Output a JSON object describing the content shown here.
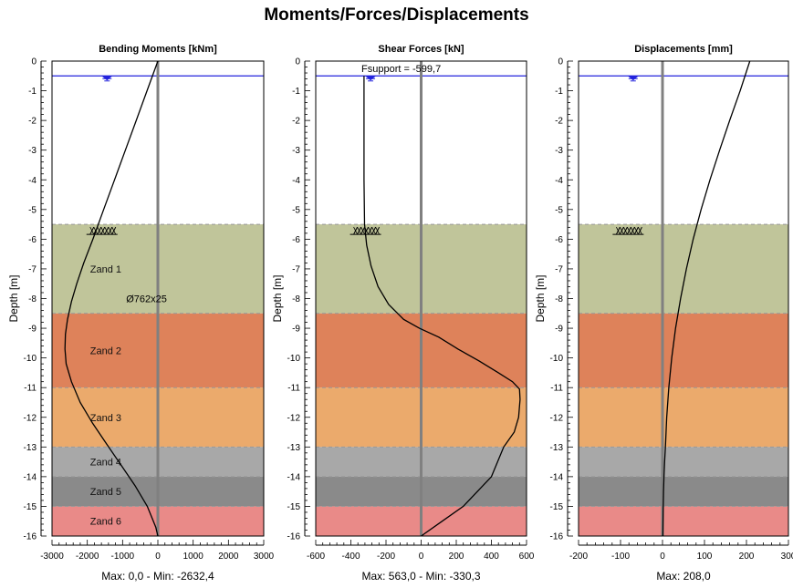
{
  "title": "Moments/Forces/Displacements",
  "colors": {
    "water": "#2222dd",
    "axis_line": "#808080",
    "curve": "#000000"
  },
  "layers": [
    {
      "name": "Zand 1",
      "top": -5.5,
      "bottom": -8.5,
      "color": "#c0c59a"
    },
    {
      "name": "Zand 2",
      "top": -8.5,
      "bottom": -11.0,
      "color": "#de825a"
    },
    {
      "name": "Zand 3",
      "top": -11.0,
      "bottom": -13.0,
      "color": "#ebaa6c"
    },
    {
      "name": "Zand 4",
      "top": -13.0,
      "bottom": -14.0,
      "color": "#a8a8a8"
    },
    {
      "name": "Zand 5",
      "top": -14.0,
      "bottom": -15.0,
      "color": "#8a8a8a"
    },
    {
      "name": "Zand 6",
      "top": -15.0,
      "bottom": -16.0,
      "color": "#e98a88"
    }
  ],
  "water_level": -0.5,
  "ground_level": -5.5,
  "chart_data": [
    {
      "type": "line",
      "title": "Bending Moments [kNm]",
      "ylabel": "Depth [m]",
      "xlim": [
        -3000,
        3000
      ],
      "ylim": [
        -16,
        0
      ],
      "xticks": [
        -3000,
        -2000,
        -1000,
        0,
        1000,
        2000,
        3000
      ],
      "yticks": [
        0,
        -1,
        -2,
        -3,
        -4,
        -5,
        -6,
        -7,
        -8,
        -9,
        -10,
        -11,
        -12,
        -13,
        -14,
        -15,
        -16
      ],
      "footer": "Max: 0,0 - Min: -2632,4",
      "annotation": "Ø762x25",
      "show_layer_names": true,
      "series": [
        {
          "x": [
            0,
            -307,
            -614,
            -921,
            -1228,
            -1535,
            -1842,
            -2100,
            -2300,
            -2450,
            -2560,
            -2620,
            -2632,
            -2600,
            -2450,
            -2200,
            -1850,
            -1450,
            -1050,
            -650,
            -300,
            -60,
            0
          ],
          "y": [
            0,
            -1,
            -2,
            -3,
            -4,
            -5,
            -6,
            -6.8,
            -7.5,
            -8.1,
            -8.7,
            -9.2,
            -9.7,
            -10.2,
            -10.8,
            -11.5,
            -12.2,
            -12.9,
            -13.6,
            -14.3,
            -15,
            -15.7,
            -16
          ]
        }
      ]
    },
    {
      "type": "line",
      "title": "Shear Forces [kN]",
      "ylabel": "Depth [m]",
      "xlim": [
        -600,
        600
      ],
      "ylim": [
        -16,
        0
      ],
      "xticks": [
        -600,
        -400,
        -200,
        0,
        200,
        400,
        600
      ],
      "yticks": [
        0,
        -1,
        -2,
        -3,
        -4,
        -5,
        -6,
        -7,
        -8,
        -9,
        -10,
        -11,
        -12,
        -13,
        -14,
        -15,
        -16
      ],
      "footer": "Max: 563,0 - Min: -330,3",
      "annotation": "Fsupport = -599,7",
      "show_layer_names": false,
      "series": [
        {
          "x": [
            -325,
            -325,
            -325,
            -322,
            -310,
            -285,
            -245,
            -185,
            -100,
            -10,
            100,
            210,
            330,
            440,
            520,
            560,
            563,
            555,
            530,
            470,
            400,
            240,
            120,
            0
          ],
          "y": [
            -0.5,
            -2,
            -4,
            -5.5,
            -6.2,
            -6.9,
            -7.6,
            -8.2,
            -8.7,
            -9.0,
            -9.3,
            -9.7,
            -10.1,
            -10.5,
            -10.8,
            -11.05,
            -11.4,
            -12.0,
            -12.5,
            -13.0,
            -14.0,
            -15.0,
            -15.5,
            -16
          ]
        }
      ]
    },
    {
      "type": "line",
      "title": "Displacements [mm]",
      "ylabel": "Depth [m]",
      "xlim": [
        -200,
        300
      ],
      "ylim": [
        -16,
        0
      ],
      "xticks": [
        -200,
        -100,
        0,
        100,
        200,
        300
      ],
      "yticks": [
        0,
        -1,
        -2,
        -3,
        -4,
        -5,
        -6,
        -7,
        -8,
        -9,
        -10,
        -11,
        -12,
        -13,
        -14,
        -15,
        -16
      ],
      "footer": "Max: 208,0",
      "annotation": "",
      "show_layer_names": false,
      "series": [
        {
          "x": [
            208,
            185,
            160,
            136,
            113,
            92,
            73,
            57,
            43,
            31,
            22,
            15,
            10,
            7,
            5,
            3.5,
            2.5,
            1.5,
            0.8
          ],
          "y": [
            0,
            -1,
            -2,
            -3,
            -4,
            -5,
            -6,
            -7,
            -8,
            -9,
            -10,
            -11,
            -12,
            -13,
            -13.5,
            -14,
            -14.5,
            -15.2,
            -16
          ]
        }
      ]
    }
  ]
}
